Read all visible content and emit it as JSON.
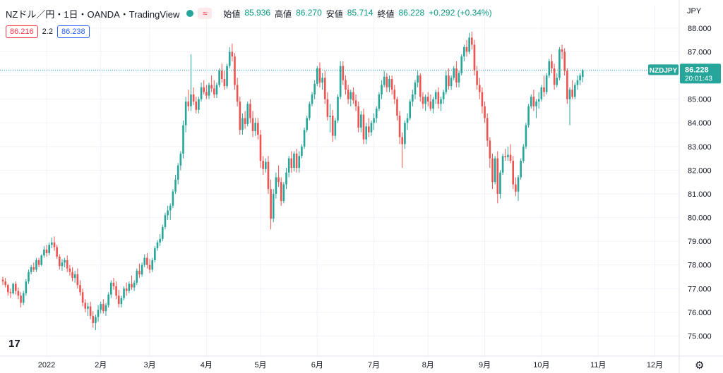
{
  "header": {
    "title": "NZドル／円・1日・OANDA・TradingView",
    "status_icon": "green-dot-icon",
    "wave_icon": "≈",
    "ohlc": [
      {
        "label": "始値",
        "value": "85.936"
      },
      {
        "label": "高値",
        "value": "86.270"
      },
      {
        "label": "安値",
        "value": "85.714"
      },
      {
        "label": "終値",
        "value": "86.228"
      }
    ],
    "change": "+0.292 (+0.34%)"
  },
  "quote": {
    "bid": "86.216",
    "spread": "2.2",
    "ask": "86.238"
  },
  "axis": {
    "currency": "JPY"
  },
  "last_price": {
    "symbol": "NZDJPY",
    "price": "86.228",
    "countdown": "20:01:43"
  },
  "colors": {
    "up": "#26a69a",
    "down": "#ef5350",
    "grid": "#f0f3fa",
    "text": "#131722"
  },
  "chart_data": {
    "type": "candlestick",
    "title": "NZドル／円・1日・OANDA・TradingView",
    "y_ticks": [
      75.0,
      76.0,
      77.0,
      78.0,
      79.0,
      80.0,
      81.0,
      82.0,
      83.0,
      84.0,
      85.0,
      86.0,
      87.0,
      88.0
    ],
    "y_tick_labels": [
      "75.000",
      "76.000",
      "77.000",
      "78.000",
      "79.000",
      "80.000",
      "81.000",
      "82.000",
      "83.000",
      "84.000",
      "85.000",
      "86.000",
      "87.000",
      "88.000"
    ],
    "ylim": [
      74.15,
      88.95
    ],
    "x_ticks": [
      {
        "label": "2022",
        "index": 17
      },
      {
        "label": "2月",
        "index": 38
      },
      {
        "label": "3月",
        "index": 57
      },
      {
        "label": "4月",
        "index": 79
      },
      {
        "label": "5月",
        "index": 100
      },
      {
        "label": "6月",
        "index": 122
      },
      {
        "label": "7月",
        "index": 144
      },
      {
        "label": "8月",
        "index": 165
      },
      {
        "label": "9月",
        "index": 187
      },
      {
        "label": "10月",
        "index": 209
      },
      {
        "label": "11月",
        "index": 231
      },
      {
        "label": "12月",
        "index": 253
      }
    ],
    "grid": true,
    "last_close": 86.228,
    "ohlc": [
      [
        77.38,
        77.5,
        77.15,
        77.3
      ],
      [
        77.3,
        77.45,
        77.05,
        77.15
      ],
      [
        77.15,
        77.2,
        76.7,
        76.85
      ],
      [
        76.85,
        77.0,
        76.6,
        76.8
      ],
      [
        76.8,
        77.25,
        76.75,
        77.2
      ],
      [
        77.2,
        77.3,
        76.75,
        76.9
      ],
      [
        76.9,
        77.05,
        76.55,
        76.7
      ],
      [
        76.7,
        76.85,
        76.2,
        76.4
      ],
      [
        76.4,
        76.9,
        76.3,
        76.8
      ],
      [
        76.8,
        77.4,
        76.7,
        77.3
      ],
      [
        77.3,
        77.8,
        77.2,
        77.7
      ],
      [
        77.7,
        78.0,
        77.6,
        77.9
      ],
      [
        77.9,
        78.1,
        77.7,
        77.8
      ],
      [
        77.8,
        78.3,
        77.7,
        78.2
      ],
      [
        78.2,
        78.3,
        77.9,
        78.0
      ],
      [
        78.0,
        78.45,
        77.95,
        78.4
      ],
      [
        78.4,
        78.8,
        78.3,
        78.65
      ],
      [
        78.65,
        78.85,
        78.35,
        78.5
      ],
      [
        78.5,
        78.95,
        78.4,
        78.85
      ],
      [
        78.85,
        79.15,
        78.7,
        78.95
      ],
      [
        78.95,
        79.2,
        78.6,
        78.75
      ],
      [
        78.75,
        78.85,
        78.25,
        78.35
      ],
      [
        78.35,
        78.45,
        77.8,
        77.95
      ],
      [
        77.95,
        78.25,
        77.75,
        78.1
      ],
      [
        78.1,
        78.3,
        77.9,
        78.2
      ],
      [
        78.2,
        78.4,
        77.7,
        77.85
      ],
      [
        77.85,
        78.0,
        77.55,
        77.7
      ],
      [
        77.7,
        77.9,
        77.3,
        77.45
      ],
      [
        77.45,
        77.75,
        77.25,
        77.6
      ],
      [
        77.6,
        77.85,
        77.0,
        77.15
      ],
      [
        77.15,
        77.35,
        76.7,
        76.85
      ],
      [
        76.85,
        77.0,
        76.25,
        76.4
      ],
      [
        76.4,
        76.55,
        76.0,
        76.15
      ],
      [
        76.15,
        76.4,
        75.85,
        76.25
      ],
      [
        76.25,
        76.45,
        75.7,
        75.85
      ],
      [
        75.85,
        76.05,
        75.35,
        75.55
      ],
      [
        75.55,
        75.9,
        75.25,
        75.8
      ],
      [
        75.8,
        76.3,
        75.6,
        76.1
      ],
      [
        76.1,
        76.45,
        75.95,
        76.35
      ],
      [
        76.35,
        76.55,
        75.95,
        76.05
      ],
      [
        76.05,
        76.4,
        75.85,
        76.3
      ],
      [
        76.3,
        76.85,
        76.2,
        76.75
      ],
      [
        76.75,
        77.35,
        76.6,
        77.25
      ],
      [
        77.25,
        77.45,
        76.95,
        77.1
      ],
      [
        77.1,
        77.3,
        76.55,
        76.7
      ],
      [
        76.7,
        76.95,
        76.2,
        76.35
      ],
      [
        76.35,
        76.7,
        76.2,
        76.6
      ],
      [
        76.6,
        77.1,
        76.5,
        77.0
      ],
      [
        77.0,
        77.25,
        76.7,
        76.9
      ],
      [
        76.9,
        77.3,
        76.8,
        77.2
      ],
      [
        77.2,
        77.55,
        76.95,
        77.05
      ],
      [
        77.05,
        77.35,
        76.9,
        77.25
      ],
      [
        77.25,
        77.85,
        77.15,
        77.75
      ],
      [
        77.75,
        78.05,
        77.45,
        77.6
      ],
      [
        77.6,
        78.1,
        77.5,
        78.0
      ],
      [
        78.0,
        78.45,
        77.9,
        78.3
      ],
      [
        78.3,
        78.5,
        77.85,
        78.0
      ],
      [
        78.0,
        78.25,
        77.65,
        77.8
      ],
      [
        77.8,
        78.3,
        77.7,
        78.2
      ],
      [
        78.2,
        78.8,
        78.1,
        78.7
      ],
      [
        78.7,
        79.05,
        78.6,
        78.95
      ],
      [
        78.95,
        79.3,
        78.8,
        79.1
      ],
      [
        79.1,
        79.7,
        79.0,
        79.6
      ],
      [
        79.6,
        80.2,
        79.5,
        80.1
      ],
      [
        80.1,
        80.5,
        79.9,
        80.3
      ],
      [
        80.3,
        80.6,
        79.9,
        80.5
      ],
      [
        80.5,
        81.2,
        80.4,
        81.1
      ],
      [
        81.1,
        81.8,
        81.0,
        81.6
      ],
      [
        81.6,
        82.3,
        81.4,
        82.2
      ],
      [
        82.2,
        82.8,
        82.0,
        82.7
      ],
      [
        82.7,
        84.1,
        82.5,
        83.9
      ],
      [
        83.9,
        85.1,
        83.6,
        84.9
      ],
      [
        84.9,
        85.4,
        84.5,
        84.7
      ],
      [
        84.7,
        86.9,
        84.5,
        85.2
      ],
      [
        85.2,
        85.5,
        84.75,
        84.9
      ],
      [
        84.9,
        85.1,
        84.4,
        84.55
      ],
      [
        84.55,
        85.1,
        84.4,
        85.0
      ],
      [
        85.0,
        85.7,
        84.9,
        85.5
      ],
      [
        85.5,
        85.8,
        85.2,
        85.3
      ],
      [
        85.3,
        85.6,
        85.0,
        85.15
      ],
      [
        85.15,
        85.7,
        85.0,
        85.6
      ],
      [
        85.6,
        86.0,
        85.3,
        85.45
      ],
      [
        85.45,
        85.8,
        85.05,
        85.2
      ],
      [
        85.2,
        85.7,
        85.05,
        85.6
      ],
      [
        85.6,
        86.3,
        85.5,
        86.2
      ],
      [
        86.2,
        86.5,
        85.7,
        85.85
      ],
      [
        85.85,
        86.2,
        85.4,
        85.55
      ],
      [
        85.55,
        86.5,
        85.45,
        86.4
      ],
      [
        86.4,
        87.2,
        86.3,
        87.0
      ],
      [
        87.0,
        87.35,
        86.6,
        86.8
      ],
      [
        86.8,
        86.95,
        85.4,
        85.6
      ],
      [
        85.6,
        85.9,
        84.7,
        84.9
      ],
      [
        84.9,
        85.1,
        83.5,
        83.7
      ],
      [
        83.7,
        84.4,
        83.5,
        84.2
      ],
      [
        84.2,
        84.5,
        83.75,
        83.95
      ],
      [
        83.95,
        84.9,
        83.85,
        84.8
      ],
      [
        84.8,
        85.0,
        84.0,
        84.2
      ],
      [
        84.2,
        84.5,
        83.4,
        83.65
      ],
      [
        83.65,
        84.2,
        83.45,
        84.0
      ],
      [
        84.0,
        84.2,
        83.3,
        83.5
      ],
      [
        83.5,
        83.7,
        82.1,
        82.4
      ],
      [
        82.4,
        82.6,
        81.8,
        82.05
      ],
      [
        82.05,
        82.5,
        81.9,
        82.35
      ],
      [
        82.35,
        82.6,
        81.0,
        81.2
      ],
      [
        81.2,
        81.6,
        79.5,
        79.95
      ],
      [
        79.95,
        81.2,
        79.8,
        81.0
      ],
      [
        81.0,
        81.9,
        80.8,
        81.7
      ],
      [
        81.7,
        82.2,
        81.3,
        81.5
      ],
      [
        81.5,
        81.7,
        80.5,
        80.7
      ],
      [
        80.7,
        81.5,
        80.6,
        81.4
      ],
      [
        81.4,
        82.1,
        81.2,
        81.9
      ],
      [
        81.9,
        82.6,
        81.7,
        82.5
      ],
      [
        82.5,
        82.8,
        81.9,
        82.1
      ],
      [
        82.1,
        82.8,
        81.95,
        82.7
      ],
      [
        82.7,
        82.9,
        81.9,
        82.1
      ],
      [
        82.1,
        82.8,
        81.9,
        82.6
      ],
      [
        82.6,
        83.1,
        82.5,
        83.0
      ],
      [
        83.0,
        83.8,
        82.9,
        83.7
      ],
      [
        83.7,
        84.3,
        83.6,
        84.2
      ],
      [
        84.2,
        84.9,
        84.1,
        84.8
      ],
      [
        84.8,
        85.3,
        84.7,
        85.2
      ],
      [
        85.2,
        85.8,
        85.0,
        85.65
      ],
      [
        85.65,
        86.4,
        85.55,
        86.3
      ],
      [
        86.3,
        86.55,
        85.5,
        85.7
      ],
      [
        85.7,
        86.1,
        85.4,
        85.9
      ],
      [
        85.9,
        86.2,
        84.8,
        85.0
      ],
      [
        85.0,
        85.3,
        84.1,
        84.25
      ],
      [
        84.25,
        84.8,
        83.6,
        84.3
      ],
      [
        84.3,
        84.55,
        83.2,
        83.45
      ],
      [
        83.45,
        84.2,
        83.3,
        84.1
      ],
      [
        84.1,
        85.2,
        84.0,
        85.1
      ],
      [
        85.1,
        86.6,
        85.0,
        86.4
      ],
      [
        86.4,
        86.6,
        85.6,
        85.8
      ],
      [
        85.8,
        86.0,
        85.2,
        85.4
      ],
      [
        85.4,
        85.6,
        84.8,
        85.0
      ],
      [
        85.0,
        85.4,
        84.7,
        85.3
      ],
      [
        85.3,
        85.5,
        84.8,
        84.95
      ],
      [
        84.95,
        85.2,
        84.5,
        84.7
      ],
      [
        84.7,
        84.9,
        83.6,
        83.8
      ],
      [
        83.8,
        84.5,
        83.6,
        84.35
      ],
      [
        84.35,
        84.6,
        83.1,
        83.3
      ],
      [
        83.3,
        84.0,
        83.1,
        83.85
      ],
      [
        83.85,
        84.2,
        83.4,
        83.6
      ],
      [
        83.6,
        84.1,
        83.45,
        84.0
      ],
      [
        84.0,
        84.4,
        83.7,
        84.2
      ],
      [
        84.2,
        84.7,
        84.0,
        84.6
      ],
      [
        84.6,
        85.3,
        84.5,
        85.2
      ],
      [
        85.2,
        85.8,
        85.0,
        85.6
      ],
      [
        85.6,
        86.2,
        85.5,
        85.95
      ],
      [
        85.95,
        86.1,
        85.3,
        85.5
      ],
      [
        85.5,
        86.0,
        85.3,
        85.85
      ],
      [
        85.85,
        86.0,
        85.2,
        85.4
      ],
      [
        85.4,
        85.6,
        84.8,
        85.0
      ],
      [
        85.0,
        85.1,
        84.1,
        84.3
      ],
      [
        84.3,
        84.5,
        83.1,
        83.4
      ],
      [
        83.4,
        83.6,
        82.1,
        83.1
      ],
      [
        83.1,
        84.1,
        82.9,
        84.0
      ],
      [
        84.0,
        84.4,
        83.7,
        84.2
      ],
      [
        84.2,
        85.0,
        84.1,
        84.9
      ],
      [
        84.9,
        85.4,
        84.7,
        85.2
      ],
      [
        85.2,
        85.8,
        85.0,
        85.7
      ],
      [
        85.7,
        86.2,
        85.5,
        86.0
      ],
      [
        86.0,
        86.1,
        84.9,
        85.1
      ],
      [
        85.1,
        85.3,
        84.6,
        84.8
      ],
      [
        84.8,
        85.2,
        84.5,
        85.1
      ],
      [
        85.1,
        85.3,
        84.7,
        84.9
      ],
      [
        84.9,
        85.2,
        84.5,
        84.6
      ],
      [
        84.6,
        85.1,
        84.4,
        85.0
      ],
      [
        85.0,
        85.4,
        84.8,
        85.3
      ],
      [
        85.3,
        85.5,
        84.6,
        84.8
      ],
      [
        84.8,
        85.1,
        84.5,
        85.0
      ],
      [
        85.0,
        85.4,
        84.8,
        85.3
      ],
      [
        85.3,
        86.2,
        85.2,
        86.0
      ],
      [
        86.0,
        86.3,
        85.4,
        85.55
      ],
      [
        85.55,
        86.0,
        85.4,
        85.9
      ],
      [
        85.9,
        86.4,
        85.8,
        86.3
      ],
      [
        86.3,
        86.6,
        85.5,
        85.7
      ],
      [
        85.7,
        86.2,
        85.5,
        86.1
      ],
      [
        86.1,
        86.9,
        86.0,
        86.8
      ],
      [
        86.8,
        87.3,
        86.6,
        87.2
      ],
      [
        87.2,
        87.5,
        86.8,
        87.0
      ],
      [
        87.0,
        87.8,
        86.9,
        87.6
      ],
      [
        87.6,
        87.85,
        87.1,
        87.3
      ],
      [
        87.3,
        87.5,
        86.0,
        86.2
      ],
      [
        86.2,
        86.4,
        85.4,
        85.6
      ],
      [
        85.6,
        85.9,
        85.0,
        85.3
      ],
      [
        85.3,
        85.5,
        84.4,
        84.7
      ],
      [
        84.7,
        84.9,
        84.0,
        84.2
      ],
      [
        84.2,
        84.4,
        83.0,
        83.25
      ],
      [
        83.25,
        83.4,
        82.1,
        82.5
      ],
      [
        82.5,
        82.7,
        81.2,
        81.5
      ],
      [
        81.5,
        82.6,
        81.4,
        82.5
      ],
      [
        82.5,
        82.8,
        80.6,
        81.0
      ],
      [
        81.0,
        82.0,
        80.8,
        81.9
      ],
      [
        81.9,
        82.7,
        81.8,
        82.6
      ],
      [
        82.6,
        82.9,
        82.4,
        82.55
      ],
      [
        82.55,
        83.0,
        82.4,
        82.65
      ],
      [
        82.65,
        83.1,
        82.3,
        82.4
      ],
      [
        82.4,
        82.6,
        81.2,
        81.4
      ],
      [
        81.4,
        81.7,
        80.9,
        81.1
      ],
      [
        81.1,
        81.8,
        80.7,
        81.7
      ],
      [
        81.7,
        82.5,
        81.6,
        82.4
      ],
      [
        82.4,
        83.1,
        82.3,
        83.0
      ],
      [
        83.0,
        84.0,
        82.9,
        83.9
      ],
      [
        83.9,
        84.8,
        83.8,
        84.7
      ],
      [
        84.7,
        85.2,
        84.6,
        85.1
      ],
      [
        85.1,
        85.4,
        84.5,
        84.7
      ],
      [
        84.7,
        85.0,
        84.2,
        84.9
      ],
      [
        84.9,
        85.3,
        84.6,
        85.0
      ],
      [
        85.0,
        85.6,
        84.9,
        85.5
      ],
      [
        85.5,
        86.0,
        85.1,
        85.3
      ],
      [
        85.3,
        86.1,
        85.2,
        86.0
      ],
      [
        86.0,
        86.7,
        85.9,
        86.6
      ],
      [
        86.6,
        86.9,
        86.1,
        86.3
      ],
      [
        86.3,
        86.5,
        85.4,
        85.6
      ],
      [
        85.6,
        86.1,
        85.5,
        85.9
      ],
      [
        85.9,
        87.2,
        85.8,
        87.1
      ],
      [
        87.1,
        87.3,
        86.7,
        87.0
      ],
      [
        87.0,
        87.15,
        86.0,
        86.2
      ],
      [
        86.2,
        86.3,
        84.8,
        85.0
      ],
      [
        85.0,
        85.5,
        83.9,
        85.4
      ],
      [
        85.4,
        85.8,
        85.0,
        85.1
      ],
      [
        85.1,
        85.7,
        85.0,
        85.6
      ],
      [
        85.6,
        86.0,
        85.4,
        85.8
      ],
      [
        85.8,
        86.1,
        85.6,
        86.0
      ],
      [
        85.94,
        86.27,
        85.71,
        86.23
      ]
    ]
  }
}
